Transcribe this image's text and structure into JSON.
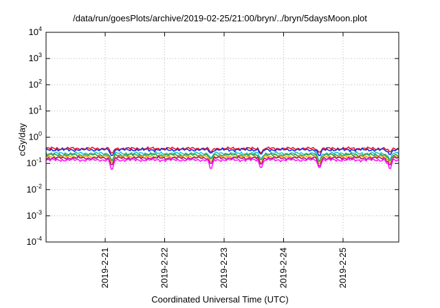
{
  "chart_data": {
    "type": "line",
    "title": "/data/run/goesPlots/archive/2019-02-25/21:00/bryn/../bryn/5daysMoon.plot",
    "xlabel": "Coordinated Universal Time (UTC)",
    "ylabel": "cGy/day",
    "yscale": "log",
    "ylim": [
      0.0001,
      10000
    ],
    "xlim": [
      "2019-02-20 00:50",
      "2019-02-25 21:00"
    ],
    "grid": true,
    "x_ticks": [
      "2019-2-21",
      "2019-2-22",
      "2019-2-23",
      "2019-2-24",
      "2019-2-25"
    ],
    "y_ticks": [
      {
        "base": "10",
        "exp": "-4",
        "value": 0.0001
      },
      {
        "base": "10",
        "exp": "-3",
        "value": 0.001
      },
      {
        "base": "10",
        "exp": "-2",
        "value": 0.01
      },
      {
        "base": "10",
        "exp": "-1",
        "value": 0.1
      },
      {
        "base": "10",
        "exp": "0",
        "value": 1
      },
      {
        "base": "10",
        "exp": "1",
        "value": 10
      },
      {
        "base": "10",
        "exp": "2",
        "value": 100
      },
      {
        "base": "10",
        "exp": "3",
        "value": 1000
      },
      {
        "base": "10",
        "exp": "4",
        "value": 10000
      }
    ],
    "series": [
      {
        "color": "#e8132b",
        "baseline": 0.37,
        "dips": [
          {
            "day": 1.11,
            "value": 0.25
          },
          {
            "day": 2.78,
            "value": 0.28
          },
          {
            "day": 3.62,
            "value": 0.26
          },
          {
            "day": 4.6,
            "value": 0.27
          },
          {
            "day": 5.78,
            "value": 0.28
          }
        ]
      },
      {
        "color": "#1a2bd6",
        "baseline": 0.33,
        "dips": [
          {
            "day": 1.11,
            "value": 0.2
          },
          {
            "day": 2.78,
            "value": 0.25
          },
          {
            "day": 3.62,
            "value": 0.23
          },
          {
            "day": 4.6,
            "value": 0.2
          },
          {
            "day": 5.78,
            "value": 0.22
          }
        ]
      },
      {
        "color": "#1ec4d6",
        "baseline": 0.24,
        "dips": [
          {
            "day": 1.11,
            "value": 0.14
          },
          {
            "day": 2.78,
            "value": 0.17
          },
          {
            "day": 3.62,
            "value": 0.16
          },
          {
            "day": 4.6,
            "value": 0.13
          },
          {
            "day": 5.78,
            "value": 0.15
          }
        ]
      },
      {
        "color": "#2f9e3a",
        "baseline": 0.21,
        "dips": [
          {
            "day": 1.11,
            "value": 0.13
          },
          {
            "day": 2.78,
            "value": 0.15
          },
          {
            "day": 3.62,
            "value": 0.14
          },
          {
            "day": 4.6,
            "value": 0.12
          },
          {
            "day": 5.78,
            "value": 0.13
          }
        ]
      },
      {
        "color": "#e8a21a",
        "baseline": 0.18,
        "dips": [
          {
            "day": 1.11,
            "value": 0.11
          },
          {
            "day": 2.78,
            "value": 0.12
          },
          {
            "day": 3.62,
            "value": 0.11
          },
          {
            "day": 4.6,
            "value": 0.1
          },
          {
            "day": 5.78,
            "value": 0.11
          }
        ]
      },
      {
        "color": "#b0127a",
        "baseline": 0.16,
        "dips": [
          {
            "day": 1.11,
            "value": 0.09
          },
          {
            "day": 2.78,
            "value": 0.1
          },
          {
            "day": 3.62,
            "value": 0.095
          },
          {
            "day": 4.6,
            "value": 0.08
          },
          {
            "day": 5.78,
            "value": 0.09
          }
        ]
      },
      {
        "color": "#ff14ff",
        "baseline": 0.135,
        "dips": [
          {
            "day": 1.11,
            "value": 0.06
          },
          {
            "day": 2.78,
            "value": 0.065
          },
          {
            "day": 3.62,
            "value": 0.07
          },
          {
            "day": 4.6,
            "value": 0.07
          },
          {
            "day": 5.78,
            "value": 0.065
          }
        ]
      }
    ]
  }
}
